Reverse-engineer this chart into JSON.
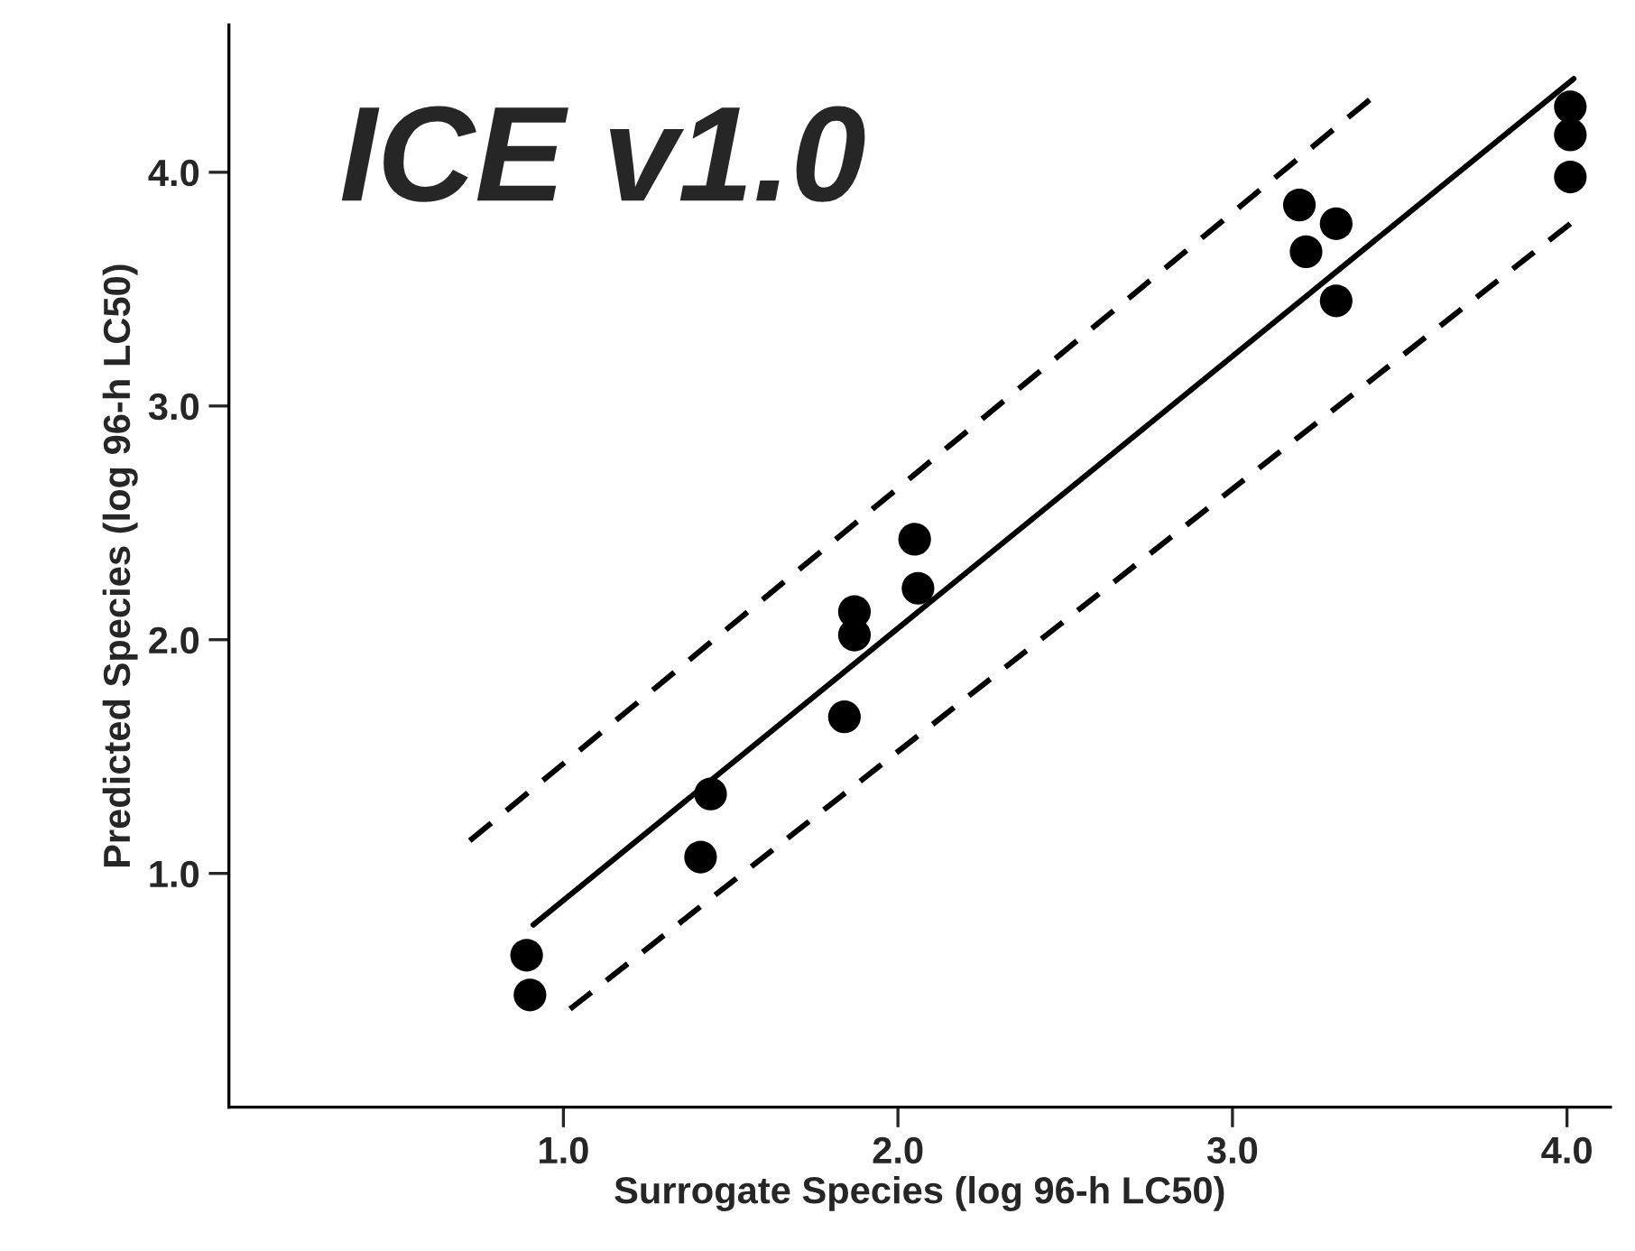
{
  "chart_data": {
    "type": "line",
    "title": "ICE v1.0",
    "xlabel": "Surrogate Species (log 96-h LC50)",
    "ylabel": "Predicted Species (log 96-h LC50)",
    "xlim": [
      0.0,
      4.13
    ],
    "ylim": [
      0.0,
      4.63
    ],
    "xticks": [
      {
        "value": 1,
        "label": "1.0"
      },
      {
        "value": 2,
        "label": "2.0"
      },
      {
        "value": 3,
        "label": "3.0"
      },
      {
        "value": 4,
        "label": "4.0"
      }
    ],
    "yticks": [
      {
        "value": 1,
        "label": "1.0"
      },
      {
        "value": 2,
        "label": "2.0"
      },
      {
        "value": 3,
        "label": "3.0"
      },
      {
        "value": 4,
        "label": "4.0"
      }
    ],
    "grid": false,
    "legend": false,
    "series": [
      {
        "type": "scatter",
        "color": "#000000",
        "marker": "circle",
        "x": [
          0.89,
          0.9,
          1.41,
          1.44,
          1.84,
          1.87,
          1.87,
          2.05,
          2.06,
          3.2,
          3.22,
          3.31,
          3.31,
          4.01,
          4.01,
          4.01
        ],
        "values": [
          0.65,
          0.48,
          1.07,
          1.34,
          1.67,
          2.12,
          2.02,
          2.43,
          2.22,
          3.86,
          3.66,
          3.78,
          3.45,
          4.28,
          4.16,
          3.98
        ]
      },
      {
        "color": "#000000",
        "line_style": "solid",
        "x": [
          0.91,
          4.02
        ],
        "values": [
          0.78,
          4.4
        ]
      },
      {
        "type": "line",
        "color": "#000000",
        "line_style": "dashed",
        "x": [
          0.72,
          3.41
        ],
        "values": [
          1.14,
          4.31
        ]
      },
      {
        "type": "line",
        "color": "#000000",
        "line_style": "dashed",
        "x": [
          1.02,
          4.01
        ],
        "values": [
          0.42,
          3.78
        ]
      }
    ]
  }
}
